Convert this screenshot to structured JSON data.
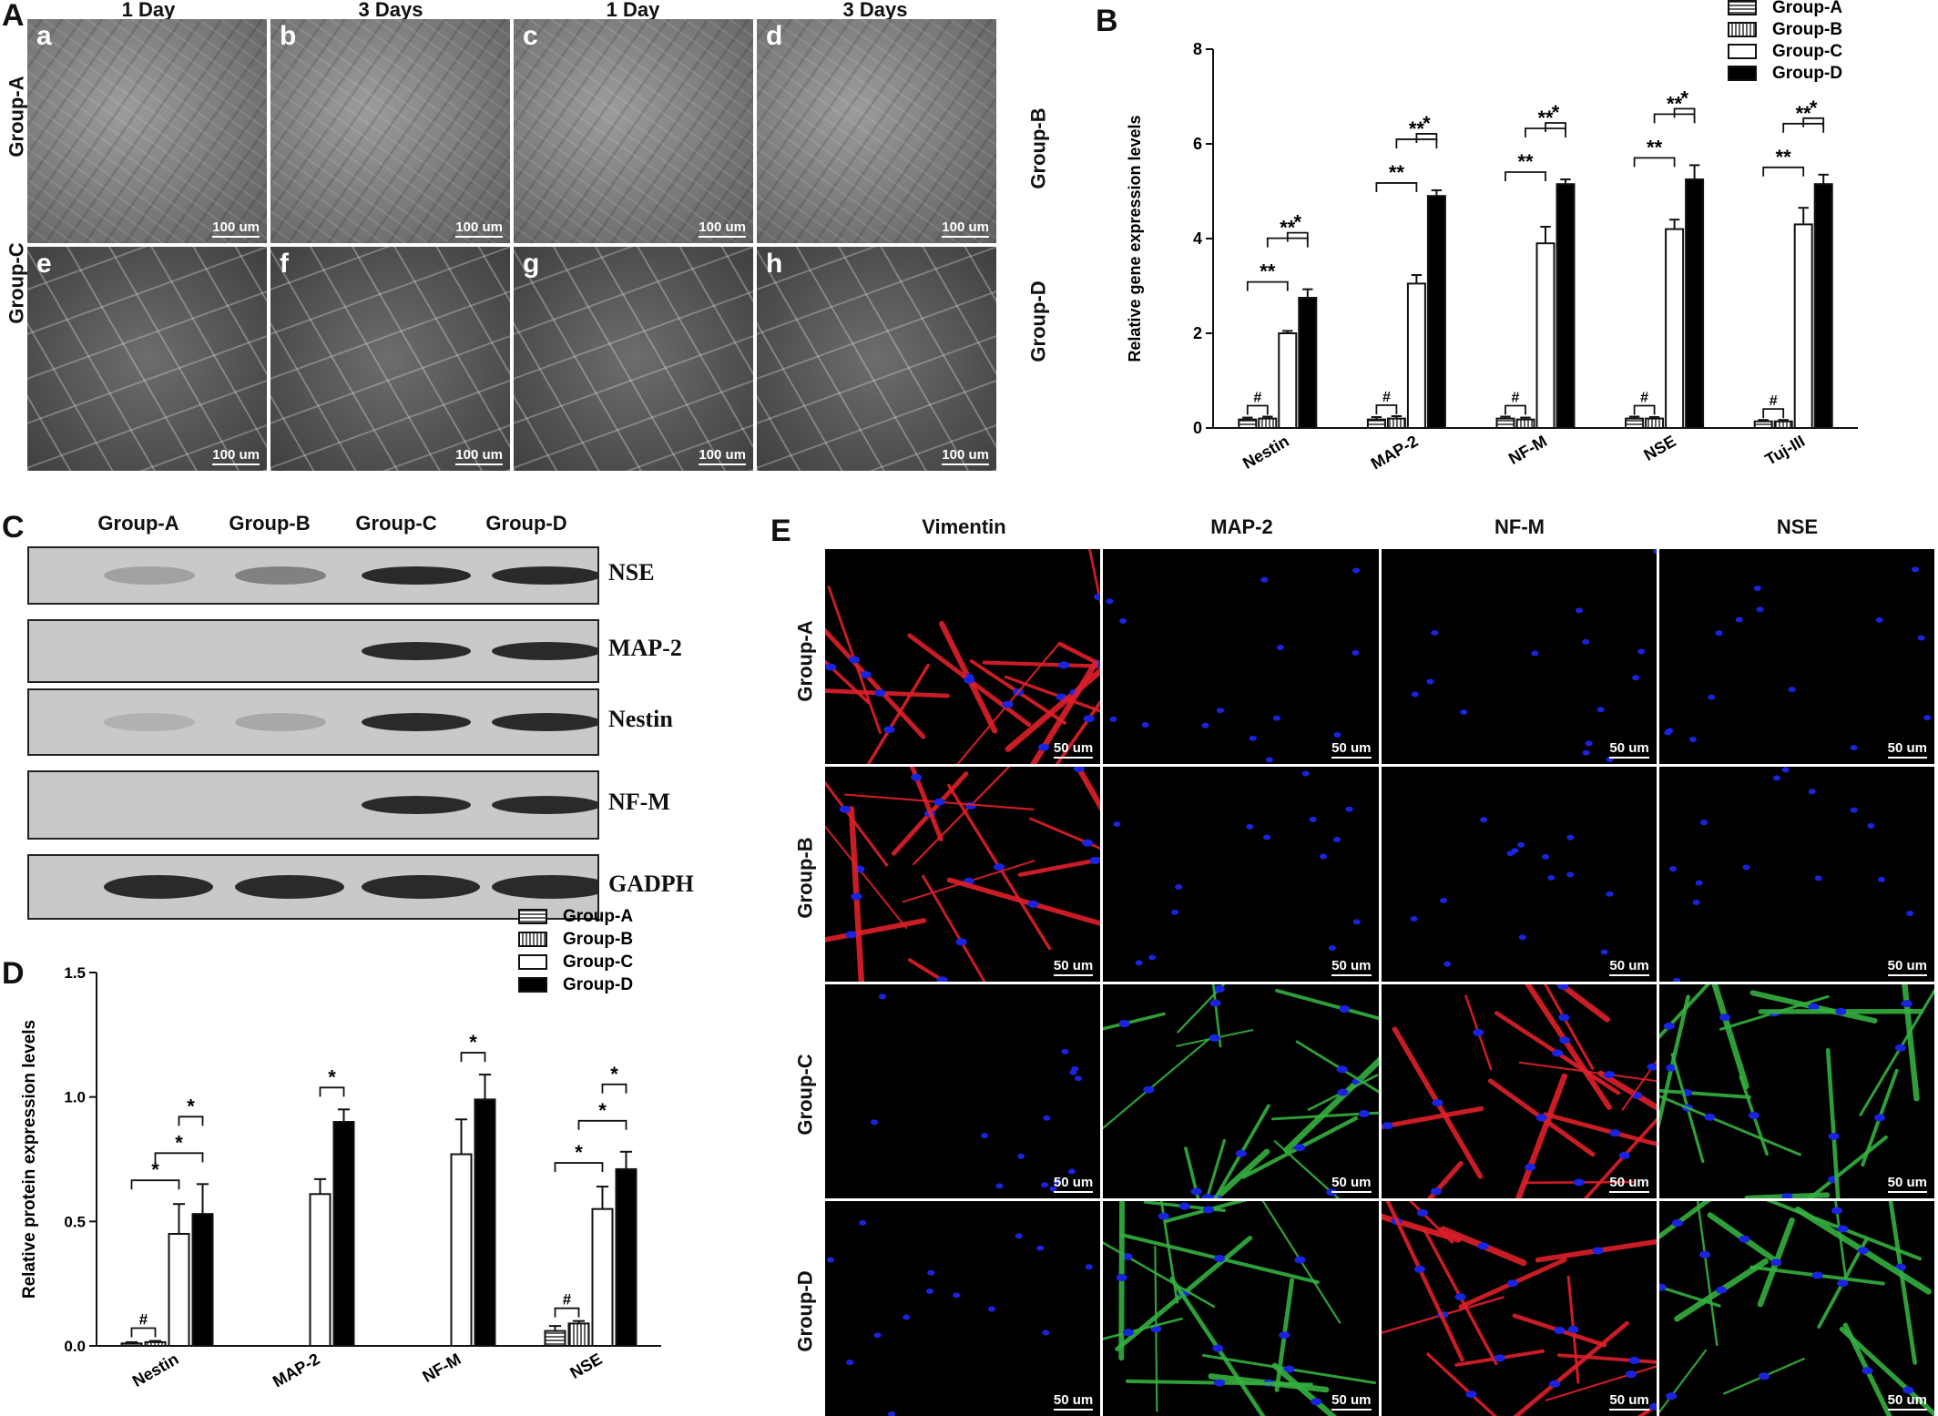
{
  "panel_letters": {
    "a": "A",
    "b": "B",
    "c": "C",
    "d": "D",
    "e": "E"
  },
  "panelA": {
    "col_headers": [
      "1 Day",
      "3 Days",
      "1 Day",
      "3 Days"
    ],
    "row_left": [
      "Group-A",
      "Group-C"
    ],
    "row_right": [
      "Group-B",
      "Group-D"
    ],
    "tile_letters": [
      "a",
      "b",
      "c",
      "d",
      "e",
      "f",
      "g",
      "h"
    ],
    "scale_label": "100 um"
  },
  "panelC": {
    "lane_headers": [
      "Group-A",
      "Group-B",
      "Group-C",
      "Group-D"
    ],
    "bands": [
      "NSE",
      "MAP-2",
      "Nestin",
      "NF-M",
      "GADPH"
    ]
  },
  "panelE": {
    "col_headers": [
      "Vimentin",
      "MAP-2",
      "NF-M",
      "NSE"
    ],
    "row_headers": [
      "Group-A",
      "Group-B",
      "Group-C",
      "Group-D"
    ],
    "scale_label": "50 um",
    "colors": {
      "red": "#e0202a",
      "green": "#35b040",
      "blue": "#1a24e0"
    }
  },
  "chart_data": [
    {
      "id": "B",
      "type": "bar",
      "ylabel": "Relative gene expression levels",
      "ylim": [
        0,
        8
      ],
      "yticks": [
        0,
        2,
        4,
        6,
        8
      ],
      "categories": [
        "Nestin",
        "MAP-2",
        "NF-M",
        "NSE",
        "Tuj-III"
      ],
      "series": [
        {
          "name": "Group-A",
          "values": [
            0.18,
            0.18,
            0.2,
            0.2,
            0.14
          ],
          "errors": [
            0.04,
            0.05,
            0.04,
            0.04,
            0.03
          ]
        },
        {
          "name": "Group-B",
          "values": [
            0.2,
            0.2,
            0.18,
            0.2,
            0.14
          ],
          "errors": [
            0.04,
            0.05,
            0.04,
            0.03,
            0.03
          ]
        },
        {
          "name": "Group-C",
          "values": [
            2.0,
            3.05,
            3.9,
            4.2,
            4.3
          ],
          "errors": [
            0.05,
            0.18,
            0.35,
            0.2,
            0.35
          ]
        },
        {
          "name": "Group-D",
          "values": [
            2.75,
            4.9,
            5.15,
            5.25,
            5.15
          ],
          "errors": [
            0.18,
            0.12,
            0.1,
            0.3,
            0.2
          ]
        }
      ],
      "annotations": {
        "pair_AB": "#",
        "pair_AC": "**",
        "pair_BD": "**",
        "pair_CD": "*"
      },
      "legend": "top-right"
    },
    {
      "id": "D",
      "type": "bar",
      "ylabel": "Relative protein expression levels",
      "ylim": [
        0,
        1.5
      ],
      "yticks": [
        "0.0",
        "0.5",
        "1.0",
        "1.5"
      ],
      "categories": [
        "Nestin",
        "MAP-2",
        "NF-M",
        "NSE"
      ],
      "series": [
        {
          "name": "Group-A",
          "values": [
            0.01,
            0,
            0,
            0.06
          ],
          "errors": [
            0.005,
            0,
            0,
            0.02
          ]
        },
        {
          "name": "Group-B",
          "values": [
            0.015,
            0,
            0,
            0.09
          ],
          "errors": [
            0.005,
            0,
            0,
            0.01
          ]
        },
        {
          "name": "Group-C",
          "values": [
            0.45,
            0.61,
            0.77,
            0.55
          ],
          "errors": [
            0.12,
            0.06,
            0.14,
            0.09
          ]
        },
        {
          "name": "Group-D",
          "values": [
            0.53,
            0.9,
            0.99,
            0.71
          ],
          "errors": [
            0.12,
            0.05,
            0.1,
            0.07
          ]
        }
      ],
      "annotations": {
        "hash": "#",
        "star": "*"
      },
      "legend": "top-right"
    }
  ]
}
